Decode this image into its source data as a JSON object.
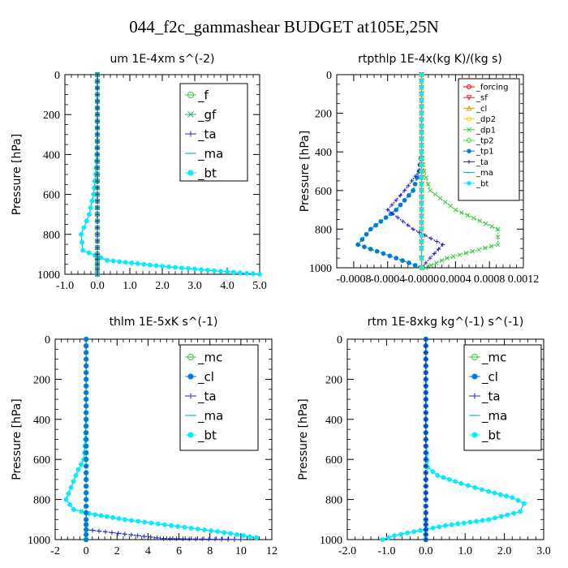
{
  "figure_title": "044_f2c_gammashear  BUDGET at105E,25N",
  "colors": {
    "forcing": "#ff0000",
    "sf": "#ee2222",
    "cl": "#e0a000",
    "dp2": "#ffd000",
    "dp1": "#33cc33",
    "tp2": "#44dd44",
    "tp1": "#0077ee",
    "ta": "#2222cc",
    "ma": "#00aaee",
    "bt": "#00eeff",
    "f": "#33cc33",
    "gf": "#22aa88",
    "mc": "#33cc33",
    "cl_blue": "#0077ee"
  },
  "chart_data": [
    {
      "type": "line",
      "title": "um  1E-4xm s^(-2)",
      "ylabel": "Pressure [hPa]",
      "xlim": [
        -1.0,
        5.0
      ],
      "ylim": [
        1000,
        0
      ],
      "y_inverted": true,
      "xticks": [
        -1.0,
        0.0,
        1.0,
        2.0,
        3.0,
        4.0,
        5.0
      ],
      "xtick_labels": [
        "-1.0",
        "0.0",
        "1.0",
        "2.0",
        "3.0",
        "4.0",
        "5.0"
      ],
      "yticks": [
        0,
        200,
        400,
        600,
        800,
        1000
      ],
      "ytick_labels": [
        "0",
        "200",
        "400",
        "600",
        "800",
        "1000"
      ],
      "legend_position": "top-right",
      "series": [
        {
          "name": "_f",
          "key": "f",
          "marker": "o",
          "x": [
            0.0,
            0.0,
            0.0,
            0.0,
            0.0,
            0.0,
            0.0,
            0.0,
            0.0,
            0.0,
            0.0,
            0.0
          ],
          "y": [
            0,
            100,
            200,
            300,
            400,
            500,
            600,
            700,
            800,
            900,
            950,
            1000
          ]
        },
        {
          "name": "_gf",
          "key": "gf",
          "marker": "x",
          "x": [
            0.0,
            0.0,
            0.0,
            0.0,
            0.0,
            0.0,
            0.0,
            0.0,
            0.0,
            0.0,
            0.0,
            0.0
          ],
          "y": [
            0,
            100,
            200,
            300,
            400,
            500,
            600,
            700,
            800,
            900,
            950,
            1000
          ]
        },
        {
          "name": "_ta",
          "key": "ta",
          "marker": "+",
          "x": [
            0.0,
            0.0,
            0.0,
            0.0,
            0.0,
            0.0,
            0.0,
            0.0,
            0.0,
            0.0,
            0.0,
            0.0
          ],
          "y": [
            0,
            100,
            200,
            300,
            400,
            500,
            600,
            700,
            800,
            900,
            950,
            1000
          ]
        },
        {
          "name": "_ma",
          "key": "ma",
          "marker": "-",
          "x": [
            0.0,
            0.0,
            0.0,
            0.0,
            -0.02,
            -0.05,
            -0.12,
            -0.25,
            -0.5,
            -0.45,
            0.3,
            2.0,
            3.8,
            5.0
          ],
          "y": [
            0,
            100,
            200,
            300,
            400,
            500,
            600,
            700,
            800,
            880,
            930,
            960,
            985,
            1000
          ]
        },
        {
          "name": "_bt",
          "key": "bt",
          "marker": "*",
          "x": [
            0.0,
            0.0,
            0.0,
            0.0,
            -0.02,
            -0.05,
            -0.12,
            -0.25,
            -0.5,
            -0.45,
            0.3,
            2.0,
            3.8,
            5.0
          ],
          "y": [
            0,
            100,
            200,
            300,
            400,
            500,
            600,
            700,
            800,
            880,
            930,
            960,
            985,
            1000
          ]
        }
      ]
    },
    {
      "type": "line",
      "title": "rtpthlp  1E-4x(kg K)/(kg s)",
      "ylabel": "Pressure [hPa]",
      "xlim": [
        -0.001,
        0.0012
      ],
      "ylim": [
        1000,
        0
      ],
      "y_inverted": true,
      "xticks": [
        -0.0008,
        -0.0004,
        0.0,
        0.0004,
        0.0008,
        0.0012
      ],
      "xtick_labels": [
        "-0.0008",
        "-0.0004",
        "-0.0000",
        "0.0004",
        "0.0008",
        "0.0012"
      ],
      "yticks": [
        0,
        200,
        400,
        600,
        800,
        1000
      ],
      "ytick_labels": [
        "0",
        "200",
        "400",
        "600",
        "800",
        "1000"
      ],
      "legend_position": "top-right",
      "series": [
        {
          "name": "_forcing",
          "key": "forcing",
          "marker": "o",
          "x": [
            0,
            0,
            0,
            0,
            0,
            0,
            0,
            0,
            0,
            0,
            0,
            0
          ],
          "y": [
            0,
            100,
            200,
            300,
            400,
            500,
            600,
            700,
            800,
            900,
            950,
            1000
          ]
        },
        {
          "name": "_sf",
          "key": "sf",
          "marker": "v",
          "x": [
            0,
            0,
            0,
            0,
            0,
            0,
            0,
            0,
            0,
            0,
            0,
            0
          ],
          "y": [
            0,
            100,
            200,
            300,
            400,
            500,
            600,
            700,
            800,
            900,
            950,
            1000
          ]
        },
        {
          "name": "_cl",
          "key": "cl",
          "marker": "^",
          "x": [
            0,
            0,
            0,
            0,
            0,
            0,
            0,
            0,
            0,
            0,
            0,
            0
          ],
          "y": [
            0,
            100,
            200,
            300,
            400,
            500,
            600,
            700,
            800,
            900,
            950,
            1000
          ]
        },
        {
          "name": "_dp2",
          "key": "dp2",
          "marker": "o",
          "x": [
            0,
            0,
            0,
            0,
            0,
            0,
            0,
            0,
            0,
            0,
            0,
            0
          ],
          "y": [
            0,
            100,
            200,
            300,
            400,
            500,
            600,
            700,
            800,
            900,
            950,
            1000
          ]
        },
        {
          "name": "_dp1",
          "key": "dp1",
          "marker": "x",
          "x": [
            0,
            0,
            0,
            0,
            0,
            3e-05,
            0.0001,
            0.0004,
            0.0009,
            0.0009,
            0.0003,
            5e-05
          ],
          "y": [
            0,
            100,
            200,
            300,
            400,
            500,
            600,
            700,
            800,
            880,
            950,
            1000
          ]
        },
        {
          "name": "_tp2",
          "key": "tp2",
          "marker": "o",
          "x": [
            0,
            0,
            0,
            0,
            0,
            -3e-05,
            -0.0001,
            -0.0003,
            -0.0006,
            -0.00075,
            -0.0003,
            0
          ],
          "y": [
            0,
            100,
            200,
            300,
            400,
            500,
            600,
            700,
            800,
            880,
            950,
            1000
          ]
        },
        {
          "name": "_tp1",
          "key": "tp1",
          "marker": "*",
          "x": [
            0,
            0,
            0,
            0,
            0,
            -3e-05,
            -0.0001,
            -0.0003,
            -0.0006,
            -0.00075,
            -0.0003,
            0
          ],
          "y": [
            0,
            100,
            200,
            300,
            400,
            500,
            600,
            700,
            800,
            880,
            950,
            1000
          ]
        },
        {
          "name": "_ta",
          "key": "ta",
          "marker": "+",
          "x": [
            0,
            0,
            0,
            0,
            0,
            -3e-05,
            -0.0002,
            -0.0004,
            -0.0001,
            0.00025,
            0.0001,
            0
          ],
          "y": [
            0,
            100,
            200,
            300,
            400,
            500,
            600,
            700,
            800,
            880,
            950,
            1000
          ]
        },
        {
          "name": "_ma",
          "key": "ma",
          "marker": "-",
          "x": [
            0,
            0,
            0,
            0,
            0,
            0,
            0,
            0,
            0,
            0,
            0,
            0
          ],
          "y": [
            0,
            100,
            200,
            300,
            400,
            500,
            600,
            700,
            800,
            900,
            950,
            1000
          ]
        },
        {
          "name": "_bt",
          "key": "bt",
          "marker": "*",
          "x": [
            0,
            0,
            0,
            0,
            0,
            0,
            0,
            0,
            0,
            0,
            0,
            0
          ],
          "y": [
            0,
            100,
            200,
            300,
            400,
            500,
            600,
            700,
            800,
            900,
            950,
            1000
          ]
        }
      ]
    },
    {
      "type": "line",
      "title": "thlm  1E-5xK s^(-1)",
      "ylabel": "Pressure [hPa]",
      "xlim": [
        -2,
        12
      ],
      "ylim": [
        1000,
        0
      ],
      "y_inverted": true,
      "xticks": [
        -2,
        0,
        2,
        4,
        6,
        8,
        10,
        12
      ],
      "xtick_labels": [
        "-2",
        "0",
        "2",
        "4",
        "6",
        "8",
        "10",
        "12"
      ],
      "yticks": [
        0,
        200,
        400,
        600,
        800,
        1000
      ],
      "ytick_labels": [
        "0",
        "200",
        "400",
        "600",
        "800",
        "1000"
      ],
      "legend_position": "top-right",
      "series": [
        {
          "name": "_mc",
          "key": "mc",
          "marker": "o",
          "x": [
            0,
            0,
            0,
            0,
            0,
            0,
            0,
            0,
            0,
            0,
            0,
            0
          ],
          "y": [
            0,
            100,
            200,
            300,
            400,
            500,
            600,
            700,
            800,
            900,
            950,
            1000
          ]
        },
        {
          "name": "_cl",
          "key": "cl_blue",
          "marker": "*",
          "x": [
            0,
            0,
            0,
            0,
            0,
            0,
            0,
            0,
            0,
            0,
            0,
            0
          ],
          "y": [
            0,
            100,
            200,
            300,
            400,
            500,
            600,
            700,
            800,
            900,
            950,
            1000
          ]
        },
        {
          "name": "_ta",
          "key": "ta",
          "marker": "+",
          "x": [
            0,
            0,
            0,
            0,
            0,
            0,
            0,
            0,
            0,
            0,
            0,
            5,
            10
          ],
          "y": [
            0,
            100,
            200,
            300,
            400,
            500,
            600,
            700,
            800,
            900,
            950,
            995,
            1000
          ]
        },
        {
          "name": "_ma",
          "key": "ma",
          "marker": "-",
          "x": [
            0,
            0,
            0,
            0,
            -0.02,
            -0.05,
            -0.15,
            -0.5,
            -1.3,
            -0.8,
            0.2,
            2.5,
            5.5,
            8.5,
            11
          ],
          "y": [
            0,
            100,
            200,
            300,
            400,
            500,
            600,
            650,
            800,
            850,
            870,
            900,
            930,
            960,
            990
          ]
        },
        {
          "name": "_bt",
          "key": "bt",
          "marker": "*",
          "x": [
            0,
            0,
            0,
            0,
            -0.02,
            -0.05,
            -0.15,
            -0.5,
            -1.3,
            -0.8,
            0.2,
            2.5,
            5.5,
            8.5,
            11
          ],
          "y": [
            0,
            100,
            200,
            300,
            400,
            500,
            600,
            650,
            800,
            850,
            870,
            900,
            930,
            960,
            990
          ]
        }
      ]
    },
    {
      "type": "line",
      "title": "rtm  1E-8xkg kg^(-1) s^(-1)",
      "ylabel": "Pressure [hPa]",
      "xlim": [
        -2.0,
        3.0
      ],
      "ylim": [
        1000,
        0
      ],
      "y_inverted": true,
      "xticks": [
        -2.0,
        -1.0,
        0.0,
        1.0,
        2.0,
        3.0
      ],
      "xtick_labels": [
        "-2.0",
        "-1.0",
        "0.0",
        "1.0",
        "2.0",
        "3.0"
      ],
      "yticks": [
        0,
        200,
        400,
        600,
        800,
        1000
      ],
      "ytick_labels": [
        "0",
        "200",
        "400",
        "600",
        "800",
        "1000"
      ],
      "legend_position": "top-right",
      "series": [
        {
          "name": "_mc",
          "key": "mc",
          "marker": "o",
          "x": [
            0,
            0,
            0,
            0,
            0,
            0,
            0,
            0,
            0,
            0,
            0,
            0
          ],
          "y": [
            0,
            100,
            200,
            300,
            400,
            500,
            600,
            700,
            800,
            900,
            950,
            1000
          ]
        },
        {
          "name": "_cl",
          "key": "cl_blue",
          "marker": "*",
          "x": [
            0,
            0,
            0,
            0,
            0,
            0,
            0,
            0,
            0,
            0,
            0,
            0
          ],
          "y": [
            0,
            100,
            200,
            300,
            400,
            500,
            600,
            700,
            800,
            900,
            950,
            1000
          ]
        },
        {
          "name": "_ta",
          "key": "ta",
          "marker": "+",
          "x": [
            0,
            0,
            0,
            0,
            0,
            0,
            0,
            0,
            0,
            0,
            0,
            0
          ],
          "y": [
            0,
            100,
            200,
            300,
            400,
            500,
            600,
            700,
            800,
            900,
            950,
            1000
          ]
        },
        {
          "name": "_ma",
          "key": "ma",
          "marker": "-",
          "x": [
            0,
            0,
            0,
            0,
            0,
            0,
            0.05,
            0.3,
            0.9,
            1.6,
            2.2,
            2.5,
            2.4,
            1.6,
            0.5,
            -0.3,
            -0.8,
            -1.1
          ],
          "y": [
            0,
            100,
            200,
            300,
            400,
            500,
            640,
            680,
            720,
            760,
            790,
            820,
            860,
            900,
            930,
            960,
            980,
            1000
          ]
        },
        {
          "name": "_bt",
          "key": "bt",
          "marker": "*",
          "x": [
            0,
            0,
            0,
            0,
            0,
            0,
            0.05,
            0.3,
            0.9,
            1.6,
            2.2,
            2.5,
            2.4,
            1.6,
            0.5,
            -0.3,
            -0.8,
            -1.1
          ],
          "y": [
            0,
            100,
            200,
            300,
            400,
            500,
            640,
            680,
            720,
            760,
            790,
            820,
            860,
            900,
            930,
            960,
            980,
            1000
          ]
        }
      ]
    }
  ]
}
